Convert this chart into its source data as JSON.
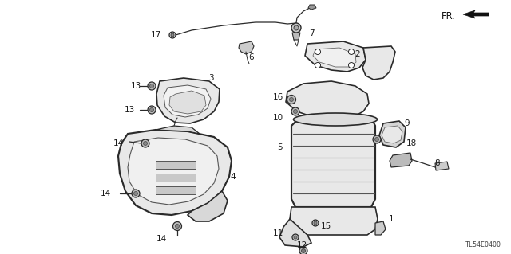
{
  "bg_color": "#ffffff",
  "diagram_code": "TL54E0400",
  "fr_label": "FR.",
  "line_color": "#2a2a2a",
  "text_color": "#1a1a1a",
  "fill_light": "#e8e8e8",
  "fill_mid": "#d0d0d0",
  "lw_main": 1.2,
  "lw_thin": 0.7,
  "label_fs": 7.5,
  "figw": 6.4,
  "figh": 3.19,
  "dpi": 100
}
